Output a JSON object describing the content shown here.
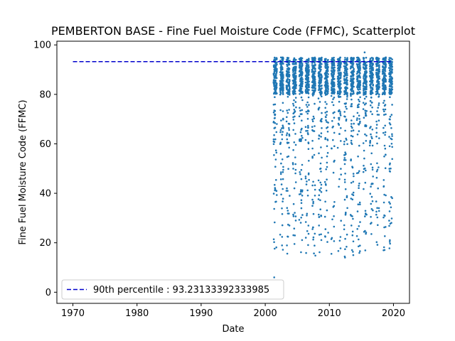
{
  "chart_data": {
    "type": "scatter",
    "title": "PEMBERTON BASE - Fine Fuel Moisture Code (FFMC), Scatterplot",
    "xlabel": "Date",
    "ylabel": "Fine Fuel Moisture Code (FFMC)",
    "xlim": [
      1967.5,
      2022.5
    ],
    "ylim": [
      -4.5,
      101.5
    ],
    "xticks": [
      1970,
      1980,
      1990,
      2000,
      2010,
      2020
    ],
    "yticks": [
      0,
      20,
      40,
      60,
      80,
      100
    ],
    "grid": false,
    "legend_position": "lower-left",
    "marker_color": "#1f77b4",
    "series": [
      {
        "name": "",
        "x_years": [
          2001,
          2002,
          2003,
          2004,
          2005,
          2006,
          2007,
          2008,
          2009,
          2010,
          2011,
          2012,
          2013,
          2014,
          2015,
          2016,
          2017,
          2018,
          2019
        ],
        "season_start": 0.3,
        "season_end": 0.82,
        "typical_range": [
          80,
          95
        ],
        "min_value": 6,
        "max_value": 97
      }
    ],
    "reference_line": {
      "label": "90th percentile : 93.23133392333985",
      "value": 93.23133392333985,
      "x_start": 1970,
      "x_end": 2019.6,
      "color": "#0000cc",
      "style": "dashed"
    }
  }
}
